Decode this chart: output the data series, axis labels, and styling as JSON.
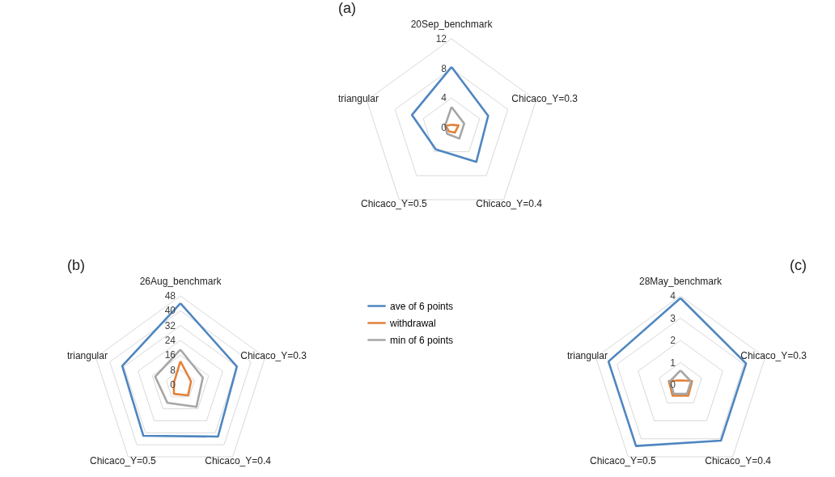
{
  "chart_data": [
    {
      "type": "radar",
      "title": "(a)",
      "categories": [
        "20Sep_benchmark",
        "Chicaco_Y=0.3",
        "Chicaco_Y=0.4",
        "Chicaco_Y=0.5",
        "triangular"
      ],
      "ylim": [
        0,
        12
      ],
      "yticks": [
        0,
        4,
        8,
        12
      ],
      "legend": false,
      "series": [
        {
          "color": "#4e86c0",
          "values": [
            8.2,
            5.2,
            5.7,
            3.6,
            5.6
          ]
        },
        {
          "color": "#e2823a",
          "values": [
            0.4,
            1.0,
            0.8,
            0.6,
            0.8
          ]
        },
        {
          "color": "#a6a6a6",
          "values": [
            2.8,
            1.8,
            1.8,
            1.0,
            0.9
          ]
        }
      ]
    },
    {
      "type": "radar",
      "title": "(b)",
      "categories": [
        "26Aug_benchmark",
        "Chicaco_Y=0.3",
        "Chicaco_Y=0.4",
        "Chicaco_Y=0.5",
        "triangular"
      ],
      "ylim": [
        0,
        48
      ],
      "yticks": [
        0,
        8,
        16,
        24,
        32,
        40,
        48
      ],
      "legend": "right",
      "series": [
        {
          "name": "ave of 6 points",
          "color": "#4e86c0",
          "values": [
            44,
            32,
            34.5,
            34,
            33
          ]
        },
        {
          "name": "withdrawal",
          "color": "#e2823a",
          "values": [
            12.7,
            6,
            7,
            6,
            3.7
          ]
        },
        {
          "name": "min of 6 points",
          "color": "#a6a6a6",
          "values": [
            19,
            12.7,
            14.7,
            12,
            14.3
          ]
        }
      ]
    },
    {
      "type": "radar",
      "title": "(c)",
      "categories": [
        "28May_benchmark",
        "Chicaco_Y=0.3",
        "Chicaco_Y=0.4",
        "Chicaco_Y=0.5",
        "triangular"
      ],
      "ylim": [
        0,
        4
      ],
      "yticks": [
        0,
        1,
        2,
        3,
        4
      ],
      "legend": false,
      "series": [
        {
          "color": "#4e86c0",
          "values": [
            3.9,
            3.1,
            3.1,
            3.4,
            3.4
          ]
        },
        {
          "color": "#e2823a",
          "values": [
            0.2,
            0.55,
            0.6,
            0.6,
            0.55
          ]
        },
        {
          "color": "#a6a6a6",
          "values": [
            0.65,
            0.5,
            0.5,
            0.5,
            0.5
          ]
        }
      ]
    }
  ]
}
